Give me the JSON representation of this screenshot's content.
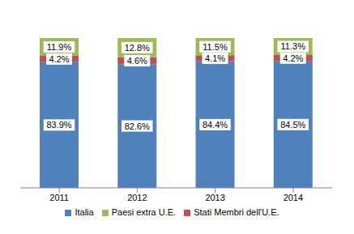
{
  "chart_data": {
    "type": "bar",
    "stacked": true,
    "data_labels": true,
    "tick_labels": "x",
    "grid": false,
    "legend": "bottom",
    "categories": [
      "2011",
      "2012",
      "2013",
      "2014"
    ],
    "ylim": [
      0,
      100
    ],
    "yticks": [
      0,
      100
    ],
    "series": [
      {
        "name": "Italia",
        "color": "#4f81bd",
        "values": [
          83.9,
          82.6,
          84.4,
          84.5
        ],
        "value_labels": [
          "83.9%",
          "82.6%",
          "84.4%",
          "84.5%"
        ]
      },
      {
        "name": "Stati Membri dell'U.E.",
        "color": "#c0504d",
        "values": [
          4.2,
          4.6,
          4.1,
          4.2
        ],
        "value_labels": [
          "4.2%",
          "4.6%",
          "4.1%",
          "4.2%"
        ]
      },
      {
        "name": "Paesi extra U.E.",
        "color": "#9bbb59",
        "values": [
          11.9,
          12.8,
          11.5,
          11.3
        ],
        "value_labels": [
          "11.9%",
          "12.8%",
          "11.5%",
          "11.3%"
        ]
      }
    ]
  }
}
